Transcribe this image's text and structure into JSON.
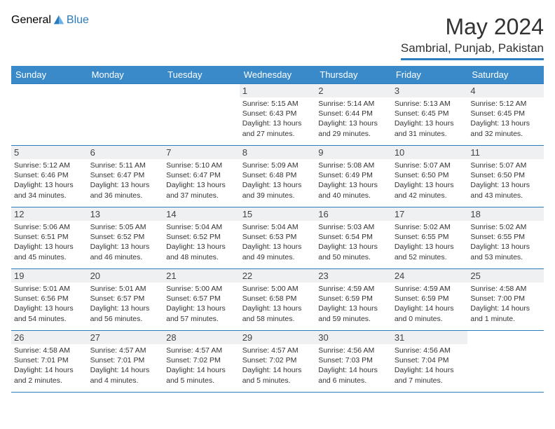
{
  "logo": {
    "general": "General",
    "blue": "Blue"
  },
  "title": "May 2024",
  "location": "Sambrial, Punjab, Pakistan",
  "colors": {
    "header_bg": "#3a8ac9",
    "border": "#2b7bbf",
    "daynum_bg": "#eef0f1",
    "text": "#333333",
    "white": "#ffffff"
  },
  "weekdays": [
    "Sunday",
    "Monday",
    "Tuesday",
    "Wednesday",
    "Thursday",
    "Friday",
    "Saturday"
  ],
  "weeks": [
    [
      null,
      null,
      null,
      {
        "d": "1",
        "sr": "5:15 AM",
        "ss": "6:43 PM",
        "dl": "13 hours and 27 minutes."
      },
      {
        "d": "2",
        "sr": "5:14 AM",
        "ss": "6:44 PM",
        "dl": "13 hours and 29 minutes."
      },
      {
        "d": "3",
        "sr": "5:13 AM",
        "ss": "6:45 PM",
        "dl": "13 hours and 31 minutes."
      },
      {
        "d": "4",
        "sr": "5:12 AM",
        "ss": "6:45 PM",
        "dl": "13 hours and 32 minutes."
      }
    ],
    [
      {
        "d": "5",
        "sr": "5:12 AM",
        "ss": "6:46 PM",
        "dl": "13 hours and 34 minutes."
      },
      {
        "d": "6",
        "sr": "5:11 AM",
        "ss": "6:47 PM",
        "dl": "13 hours and 36 minutes."
      },
      {
        "d": "7",
        "sr": "5:10 AM",
        "ss": "6:47 PM",
        "dl": "13 hours and 37 minutes."
      },
      {
        "d": "8",
        "sr": "5:09 AM",
        "ss": "6:48 PM",
        "dl": "13 hours and 39 minutes."
      },
      {
        "d": "9",
        "sr": "5:08 AM",
        "ss": "6:49 PM",
        "dl": "13 hours and 40 minutes."
      },
      {
        "d": "10",
        "sr": "5:07 AM",
        "ss": "6:50 PM",
        "dl": "13 hours and 42 minutes."
      },
      {
        "d": "11",
        "sr": "5:07 AM",
        "ss": "6:50 PM",
        "dl": "13 hours and 43 minutes."
      }
    ],
    [
      {
        "d": "12",
        "sr": "5:06 AM",
        "ss": "6:51 PM",
        "dl": "13 hours and 45 minutes."
      },
      {
        "d": "13",
        "sr": "5:05 AM",
        "ss": "6:52 PM",
        "dl": "13 hours and 46 minutes."
      },
      {
        "d": "14",
        "sr": "5:04 AM",
        "ss": "6:52 PM",
        "dl": "13 hours and 48 minutes."
      },
      {
        "d": "15",
        "sr": "5:04 AM",
        "ss": "6:53 PM",
        "dl": "13 hours and 49 minutes."
      },
      {
        "d": "16",
        "sr": "5:03 AM",
        "ss": "6:54 PM",
        "dl": "13 hours and 50 minutes."
      },
      {
        "d": "17",
        "sr": "5:02 AM",
        "ss": "6:55 PM",
        "dl": "13 hours and 52 minutes."
      },
      {
        "d": "18",
        "sr": "5:02 AM",
        "ss": "6:55 PM",
        "dl": "13 hours and 53 minutes."
      }
    ],
    [
      {
        "d": "19",
        "sr": "5:01 AM",
        "ss": "6:56 PM",
        "dl": "13 hours and 54 minutes."
      },
      {
        "d": "20",
        "sr": "5:01 AM",
        "ss": "6:57 PM",
        "dl": "13 hours and 56 minutes."
      },
      {
        "d": "21",
        "sr": "5:00 AM",
        "ss": "6:57 PM",
        "dl": "13 hours and 57 minutes."
      },
      {
        "d": "22",
        "sr": "5:00 AM",
        "ss": "6:58 PM",
        "dl": "13 hours and 58 minutes."
      },
      {
        "d": "23",
        "sr": "4:59 AM",
        "ss": "6:59 PM",
        "dl": "13 hours and 59 minutes."
      },
      {
        "d": "24",
        "sr": "4:59 AM",
        "ss": "6:59 PM",
        "dl": "14 hours and 0 minutes."
      },
      {
        "d": "25",
        "sr": "4:58 AM",
        "ss": "7:00 PM",
        "dl": "14 hours and 1 minute."
      }
    ],
    [
      {
        "d": "26",
        "sr": "4:58 AM",
        "ss": "7:01 PM",
        "dl": "14 hours and 2 minutes."
      },
      {
        "d": "27",
        "sr": "4:57 AM",
        "ss": "7:01 PM",
        "dl": "14 hours and 4 minutes."
      },
      {
        "d": "28",
        "sr": "4:57 AM",
        "ss": "7:02 PM",
        "dl": "14 hours and 5 minutes."
      },
      {
        "d": "29",
        "sr": "4:57 AM",
        "ss": "7:02 PM",
        "dl": "14 hours and 5 minutes."
      },
      {
        "d": "30",
        "sr": "4:56 AM",
        "ss": "7:03 PM",
        "dl": "14 hours and 6 minutes."
      },
      {
        "d": "31",
        "sr": "4:56 AM",
        "ss": "7:04 PM",
        "dl": "14 hours and 7 minutes."
      },
      null
    ]
  ],
  "labels": {
    "sunrise": "Sunrise: ",
    "sunset": "Sunset: ",
    "daylight": "Daylight: "
  }
}
